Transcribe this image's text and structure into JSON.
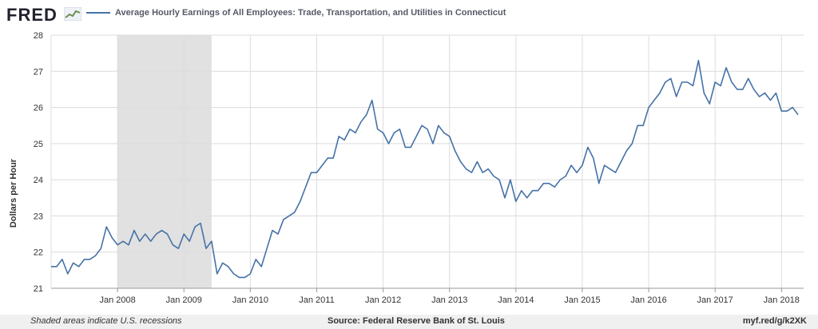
{
  "header": {
    "logo": "FRED",
    "series_title": "Average Hourly Earnings of All Employees: Trade, Transportation, and Utilities in Connecticut"
  },
  "footer": {
    "note": "Shaded areas indicate U.S. recessions",
    "source": "Source: Federal Reserve Bank of St. Louis",
    "link": "myf.red/g/k2XK"
  },
  "colors": {
    "line": "#4572a7",
    "recession": "#e1e1e1",
    "grid": "#dcdcdc"
  },
  "chart_data": {
    "type": "line",
    "title": "Average Hourly Earnings of All Employees: Trade, Transportation, and Utilities in Connecticut",
    "ylabel": "Dollars per Hour",
    "xlabel": "",
    "ylim": [
      21,
      28
    ],
    "xlim": [
      "2007-01",
      "2018-05"
    ],
    "yticks": [
      21,
      22,
      23,
      24,
      25,
      26,
      27,
      28
    ],
    "xticks": [
      "Jan 2008",
      "Jan 2009",
      "Jan 2010",
      "Jan 2011",
      "Jan 2012",
      "Jan 2013",
      "Jan 2014",
      "Jan 2015",
      "Jan 2016",
      "Jan 2017",
      "Jan 2018"
    ],
    "grid": true,
    "recession": {
      "start": "2008-01",
      "end": "2009-06"
    },
    "series": [
      {
        "start": "2007-01",
        "frequency": "monthly",
        "values": [
          21.6,
          21.6,
          21.8,
          21.4,
          21.7,
          21.6,
          21.8,
          21.8,
          21.9,
          22.1,
          22.7,
          22.4,
          22.2,
          22.3,
          22.2,
          22.6,
          22.3,
          22.5,
          22.3,
          22.5,
          22.6,
          22.5,
          22.2,
          22.1,
          22.5,
          22.3,
          22.7,
          22.8,
          22.1,
          22.3,
          21.4,
          21.7,
          21.6,
          21.4,
          21.3,
          21.3,
          21.4,
          21.8,
          21.6,
          22.1,
          22.6,
          22.5,
          22.9,
          23.0,
          23.1,
          23.4,
          23.8,
          24.2,
          24.2,
          24.4,
          24.6,
          24.6,
          25.2,
          25.1,
          25.4,
          25.3,
          25.6,
          25.8,
          26.2,
          25.4,
          25.3,
          25.0,
          25.3,
          25.4,
          24.9,
          24.9,
          25.2,
          25.5,
          25.4,
          25.0,
          25.5,
          25.3,
          25.2,
          24.8,
          24.5,
          24.3,
          24.2,
          24.5,
          24.2,
          24.3,
          24.1,
          24.0,
          23.5,
          24.0,
          23.4,
          23.7,
          23.5,
          23.7,
          23.7,
          23.9,
          23.9,
          23.8,
          24.0,
          24.1,
          24.4,
          24.2,
          24.4,
          24.9,
          24.6,
          23.9,
          24.4,
          24.3,
          24.2,
          24.5,
          24.8,
          25.0,
          25.5,
          25.5,
          26.0,
          26.2,
          26.4,
          26.7,
          26.8,
          26.3,
          26.7,
          26.7,
          26.6,
          27.3,
          26.4,
          26.1,
          26.7,
          26.6,
          27.1,
          26.7,
          26.5,
          26.5,
          26.8,
          26.5,
          26.3,
          26.4,
          26.2,
          26.4,
          25.9,
          25.9,
          26.0,
          25.8
        ]
      }
    ]
  }
}
